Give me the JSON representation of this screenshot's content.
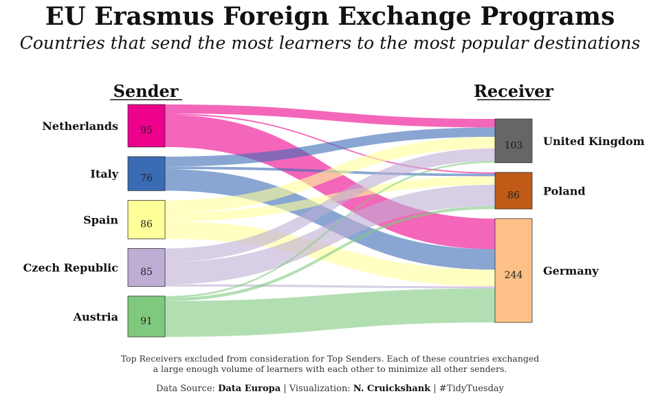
{
  "header": {
    "title": "EU Erasmus Foreign Exchange Programs",
    "subtitle": "Countries that send the most learners to the most popular destinations"
  },
  "footer": {
    "note_line1": "Top Receivers excluded from consideration for Top Senders. Each of these countries exchanged",
    "note_line2": "a large enough volume of learners with each other to minimize all other senders.",
    "source_prefix": "Data Source: ",
    "source_name": "Data Europa",
    "viz_prefix": " | Visualization: ",
    "viz_name": "N. Cruickshank",
    "hashtag": " | #TidyTuesday"
  },
  "chart_data": {
    "type": "sankey",
    "left_header": "Sender",
    "right_header": "Receiver",
    "senders": [
      {
        "name": "Netherlands",
        "value": 95,
        "color": "#ec008c"
      },
      {
        "name": "Italy",
        "value": 76,
        "color": "#3a6bb5"
      },
      {
        "name": "Spain",
        "value": 86,
        "color": "#ffff99"
      },
      {
        "name": "Czech Republic",
        "value": 85,
        "color": "#beaed4"
      },
      {
        "name": "Austria",
        "value": 91,
        "color": "#7fc97f"
      }
    ],
    "receivers": [
      {
        "name": "United Kingdom",
        "value": 103,
        "color": "#666666"
      },
      {
        "name": "Poland",
        "value": 86,
        "color": "#bf5b17"
      },
      {
        "name": "Germany",
        "value": 244,
        "color": "#fdc086"
      }
    ],
    "flows": [
      {
        "from": "Netherlands",
        "to": "United Kingdom",
        "value": 20
      },
      {
        "from": "Netherlands",
        "to": "Poland",
        "value": 3
      },
      {
        "from": "Netherlands",
        "to": "Germany",
        "value": 72
      },
      {
        "from": "Italy",
        "to": "United Kingdom",
        "value": 22
      },
      {
        "from": "Italy",
        "to": "Poland",
        "value": 6
      },
      {
        "from": "Italy",
        "to": "Germany",
        "value": 48
      },
      {
        "from": "Spain",
        "to": "United Kingdom",
        "value": 27
      },
      {
        "from": "Spain",
        "to": "Poland",
        "value": 20
      },
      {
        "from": "Spain",
        "to": "Germany",
        "value": 39
      },
      {
        "from": "Czech Republic",
        "to": "United Kingdom",
        "value": 30
      },
      {
        "from": "Czech Republic",
        "to": "Poland",
        "value": 50
      },
      {
        "from": "Czech Republic",
        "to": "Germany",
        "value": 5
      },
      {
        "from": "Austria",
        "to": "United Kingdom",
        "value": 4
      },
      {
        "from": "Austria",
        "to": "Poland",
        "value": 7
      },
      {
        "from": "Austria",
        "to": "Germany",
        "value": 80
      }
    ]
  }
}
